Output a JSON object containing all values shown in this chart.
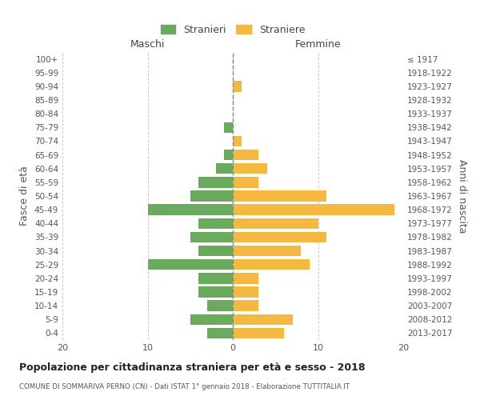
{
  "age_groups": [
    "0-4",
    "5-9",
    "10-14",
    "15-19",
    "20-24",
    "25-29",
    "30-34",
    "35-39",
    "40-44",
    "45-49",
    "50-54",
    "55-59",
    "60-64",
    "65-69",
    "70-74",
    "75-79",
    "80-84",
    "85-89",
    "90-94",
    "95-99",
    "100+"
  ],
  "birth_years": [
    "2013-2017",
    "2008-2012",
    "2003-2007",
    "1998-2002",
    "1993-1997",
    "1988-1992",
    "1983-1987",
    "1978-1982",
    "1973-1977",
    "1968-1972",
    "1963-1967",
    "1958-1962",
    "1953-1957",
    "1948-1952",
    "1943-1947",
    "1938-1942",
    "1933-1937",
    "1928-1932",
    "1923-1927",
    "1918-1922",
    "≤ 1917"
  ],
  "males": [
    3,
    5,
    3,
    4,
    4,
    10,
    4,
    5,
    4,
    10,
    5,
    4,
    2,
    1,
    0,
    1,
    0,
    0,
    0,
    0,
    0
  ],
  "females": [
    6,
    7,
    3,
    3,
    3,
    9,
    8,
    11,
    10,
    19,
    11,
    3,
    4,
    3,
    1,
    0,
    0,
    0,
    1,
    0,
    0
  ],
  "male_color": "#6aaa5e",
  "female_color": "#f5b942",
  "grid_color": "#cccccc",
  "xlim": [
    -20,
    20
  ],
  "xticks": [
    -20,
    -10,
    0,
    10,
    20
  ],
  "xticklabels": [
    "20",
    "10",
    "0",
    "10",
    "20"
  ],
  "title": "Popolazione per cittadinanza straniera per età e sesso - 2018",
  "subtitle": "COMUNE DI SOMMARIVA PERNO (CN) - Dati ISTAT 1° gennaio 2018 - Elaborazione TUTTITALIA.IT",
  "legend_male": "Stranieri",
  "legend_female": "Straniere",
  "ylabel_left": "Fasce di età",
  "ylabel_right": "Anni di nascita",
  "label_maschi": "Maschi",
  "label_femmine": "Femmine"
}
